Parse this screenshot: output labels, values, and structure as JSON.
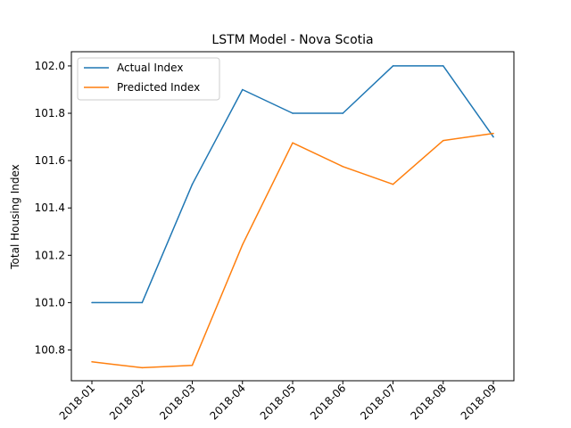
{
  "chart_data": {
    "type": "line",
    "title": "LSTM Model - Nova Scotia",
    "xlabel": "",
    "ylabel": "Total Housing Index",
    "categories": [
      "2018-01",
      "2018-02",
      "2018-03",
      "2018-04",
      "2018-05",
      "2018-06",
      "2018-07",
      "2018-08",
      "2018-09"
    ],
    "series": [
      {
        "name": "Actual Index",
        "color": "#1f77b4",
        "values": [
          101.0,
          101.0,
          101.5,
          101.9,
          101.8,
          101.8,
          102.0,
          102.0,
          101.7
        ]
      },
      {
        "name": "Predicted Index",
        "color": "#ff7f0e",
        "values": [
          100.75,
          100.725,
          100.735,
          101.245,
          101.675,
          101.575,
          101.5,
          101.685,
          101.715
        ]
      }
    ],
    "ylim": [
      100.67,
      102.06
    ],
    "yticks": [
      "100.8",
      "101.0",
      "101.2",
      "101.4",
      "101.6",
      "101.8",
      "102.0"
    ],
    "grid": false,
    "legend_position": "top-left"
  }
}
